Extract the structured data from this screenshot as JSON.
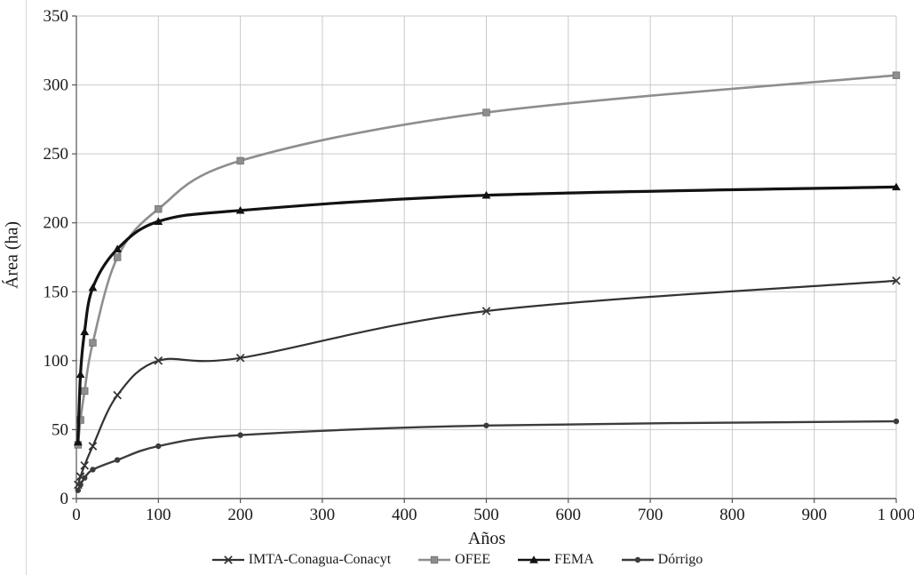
{
  "chart_data": {
    "type": "line",
    "title": "",
    "xlabel": "Años",
    "ylabel": "Área (ha)",
    "xlim": [
      0,
      1000
    ],
    "ylim": [
      0,
      350
    ],
    "xtick_values": [
      0,
      100,
      200,
      300,
      400,
      500,
      600,
      700,
      800,
      900,
      1000
    ],
    "xtick_labels": [
      "0",
      "100",
      "200",
      "300",
      "400",
      "500",
      "600",
      "700",
      "800",
      "900",
      "1 000"
    ],
    "ytick_values": [
      0,
      50,
      100,
      150,
      200,
      250,
      300,
      350
    ],
    "grid": true,
    "legend_position": "bottom",
    "x": [
      2,
      5,
      10,
      20,
      50,
      100,
      200,
      500,
      1000
    ],
    "series": [
      {
        "name": "IMTA-Conagua-Conacyt",
        "marker": "x",
        "color": "#333333",
        "width": 2.2,
        "values": [
          10,
          16,
          24,
          38,
          75,
          100,
          102,
          136,
          158
        ]
      },
      {
        "name": "OFEE",
        "marker": "square",
        "color": "#8e8e8e",
        "width": 2.6,
        "values": [
          39,
          57,
          78,
          113,
          175,
          210,
          245,
          280,
          307
        ]
      },
      {
        "name": "FEMA",
        "marker": "triangle",
        "color": "#121212",
        "width": 3.2,
        "values": [
          41,
          90,
          121,
          153,
          181,
          201,
          209,
          220,
          226
        ]
      },
      {
        "name": "Dórrigo",
        "marker": "circle",
        "color": "#3c3c3c",
        "width": 2.4,
        "values": [
          6,
          10,
          15,
          21,
          28,
          38,
          46,
          53,
          56
        ]
      }
    ]
  },
  "colors": {
    "grid": "#c9c9c9",
    "axis": "#555555",
    "text": "#1a1a1a",
    "page_border": "#d8d8d8",
    "background": "#ffffff"
  }
}
